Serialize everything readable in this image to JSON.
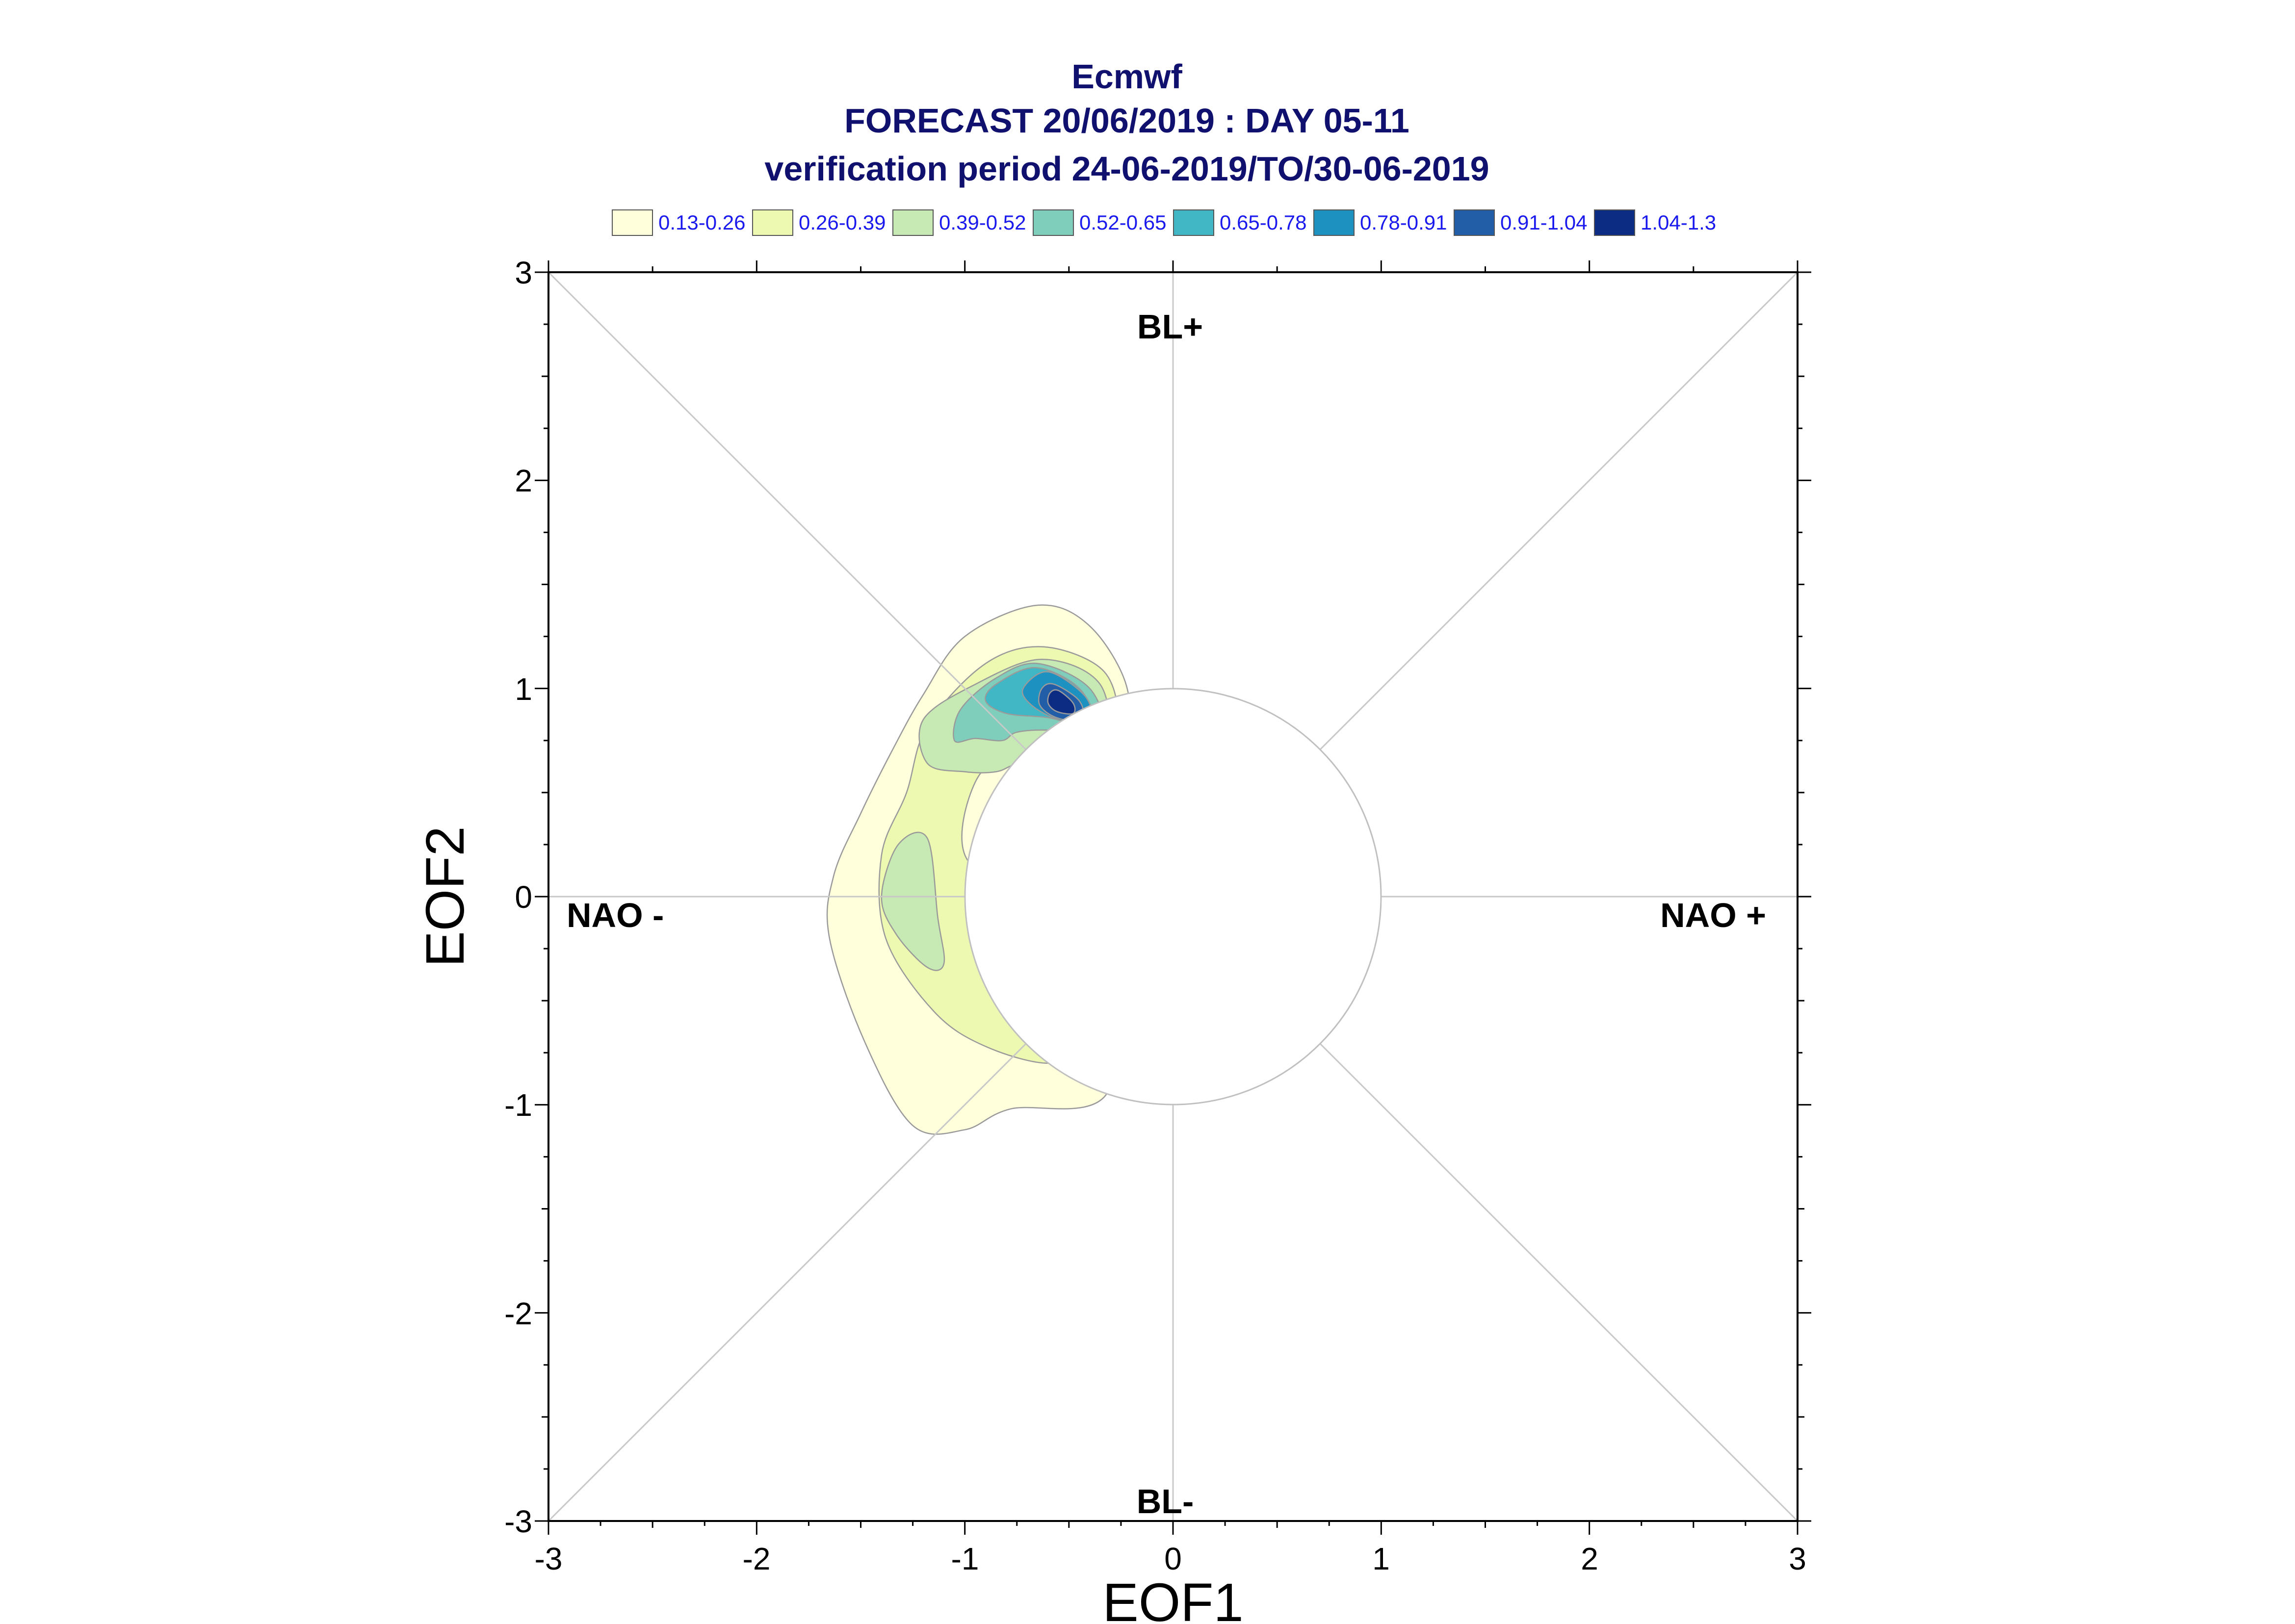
{
  "chart_data": {
    "type": "density-contour",
    "title": [
      "Ecmwf",
      "FORECAST 20/06/2019 : DAY 05-11",
      "verification period 24-06-2019/TO/30-06-2019"
    ],
    "xlabel": "EOF1",
    "ylabel": "EOF2",
    "xlim": [
      -3,
      3
    ],
    "ylim": [
      -3,
      3
    ],
    "x_ticks": [
      "-3",
      "-2",
      "-1",
      "0",
      "1",
      "2",
      "3"
    ],
    "y_ticks": [
      "-3",
      "-2",
      "-1",
      "0",
      "1",
      "2",
      "3"
    ],
    "regime_labels": {
      "top": "BL+",
      "bottom": "BL-",
      "left": "NAO -",
      "right": "NAO +"
    },
    "unit_circle_radius": 1,
    "legend": [
      {
        "label": "0.13-0.26",
        "color": "#ffffdc"
      },
      {
        "label": "0.26-0.39",
        "color": "#edf8b1"
      },
      {
        "label": "0.39-0.52",
        "color": "#c7e9b4"
      },
      {
        "label": "0.52-0.65",
        "color": "#7fcdbb"
      },
      {
        "label": "0.65-0.78",
        "color": "#41b6c4"
      },
      {
        "label": "0.78-0.91",
        "color": "#1d91c0"
      },
      {
        "label": "0.91-1.04",
        "color": "#225ea8"
      },
      {
        "label": "1.04-1.3",
        "color": "#0c2c84"
      }
    ],
    "density_levels": [
      {
        "level": "0.13-0.26",
        "color": "#ffffdc",
        "regions": [
          [
            [
              -0.65,
              1.4
            ],
            [
              -0.4,
              1.3
            ],
            [
              -0.22,
              1.0
            ],
            [
              -0.25,
              0.7
            ],
            [
              -0.55,
              0.65
            ],
            [
              -0.72,
              0.45
            ],
            [
              -0.42,
              0.15
            ],
            [
              -0.27,
              -0.3
            ],
            [
              -0.32,
              -0.95
            ],
            [
              -0.78,
              -1.02
            ],
            [
              -1.0,
              -1.12
            ],
            [
              -1.25,
              -1.1
            ],
            [
              -1.48,
              -0.7
            ],
            [
              -1.65,
              -0.2
            ],
            [
              -1.63,
              0.1
            ],
            [
              -1.5,
              0.4
            ],
            [
              -1.35,
              0.7
            ],
            [
              -1.2,
              0.97
            ],
            [
              -1.0,
              1.25
            ]
          ]
        ]
      },
      {
        "level": "0.26-0.39",
        "color": "#edf8b1",
        "regions": [
          [
            [
              -0.62,
              1.2
            ],
            [
              -0.33,
              1.08
            ],
            [
              -0.28,
              0.82
            ],
            [
              -0.5,
              0.7
            ],
            [
              -0.75,
              0.72
            ],
            [
              -0.95,
              0.55
            ],
            [
              -1.0,
              0.2
            ],
            [
              -0.72,
              -0.03
            ],
            [
              -0.47,
              -0.25
            ],
            [
              -0.42,
              -0.68
            ],
            [
              -0.58,
              -0.8
            ],
            [
              -0.9,
              -0.72
            ],
            [
              -1.15,
              -0.55
            ],
            [
              -1.38,
              -0.2
            ],
            [
              -1.4,
              0.2
            ],
            [
              -1.28,
              0.5
            ],
            [
              -1.18,
              0.82
            ],
            [
              -0.9,
              1.12
            ]
          ]
        ]
      },
      {
        "level": "0.39-0.52",
        "color": "#c7e9b4",
        "regions": [
          [
            [
              -0.63,
              1.14
            ],
            [
              -0.35,
              1.02
            ],
            [
              -0.32,
              0.7
            ],
            [
              -0.55,
              0.7
            ],
            [
              -0.75,
              0.64
            ],
            [
              -0.85,
              0.6
            ],
            [
              -1.0,
              0.6
            ],
            [
              -1.18,
              0.64
            ],
            [
              -1.2,
              0.85
            ],
            [
              -0.95,
              1.02
            ]
          ],
          [
            [
              -1.32,
              0.25
            ],
            [
              -1.18,
              0.28
            ],
            [
              -1.13,
              -0.1
            ],
            [
              -1.1,
              -0.32
            ],
            [
              -1.18,
              -0.34
            ],
            [
              -1.33,
              -0.18
            ],
            [
              -1.4,
              0.0
            ]
          ]
        ]
      },
      {
        "level": "0.52-0.65",
        "color": "#7fcdbb",
        "regions": [
          [
            [
              -0.65,
              1.12
            ],
            [
              -0.4,
              1.0
            ],
            [
              -0.34,
              0.78
            ],
            [
              -0.6,
              0.8
            ],
            [
              -0.75,
              0.79
            ],
            [
              -0.82,
              0.75
            ],
            [
              -0.95,
              0.76
            ],
            [
              -1.05,
              0.75
            ],
            [
              -1.02,
              0.9
            ],
            [
              -0.85,
              1.05
            ]
          ]
        ]
      },
      {
        "level": "0.65-0.78",
        "color": "#41b6c4",
        "regions": [
          [
            [
              -0.66,
              1.1
            ],
            [
              -0.45,
              1.0
            ],
            [
              -0.38,
              0.82
            ],
            [
              -0.6,
              0.86
            ],
            [
              -0.8,
              0.88
            ],
            [
              -0.9,
              0.94
            ],
            [
              -0.85,
              1.02
            ]
          ]
        ]
      },
      {
        "level": "0.78-0.91",
        "color": "#1d91c0",
        "regions": [
          [
            [
              -0.6,
              1.08
            ],
            [
              -0.42,
              0.96
            ],
            [
              -0.4,
              0.83
            ],
            [
              -0.55,
              0.85
            ],
            [
              -0.68,
              0.92
            ],
            [
              -0.72,
              1.0
            ]
          ]
        ]
      },
      {
        "level": "0.91-1.04",
        "color": "#225ea8",
        "regions": [
          [
            [
              -0.57,
              1.02
            ],
            [
              -0.45,
              0.94
            ],
            [
              -0.44,
              0.85
            ],
            [
              -0.56,
              0.86
            ],
            [
              -0.64,
              0.92
            ],
            [
              -0.63,
              1.0
            ]
          ]
        ]
      },
      {
        "level": "1.04-1.3",
        "color": "#0c2c84",
        "regions": [
          [
            [
              -0.55,
              0.99
            ],
            [
              -0.48,
              0.93
            ],
            [
              -0.48,
              0.88
            ],
            [
              -0.56,
              0.89
            ],
            [
              -0.6,
              0.93
            ],
            [
              -0.59,
              0.98
            ]
          ]
        ]
      }
    ]
  }
}
